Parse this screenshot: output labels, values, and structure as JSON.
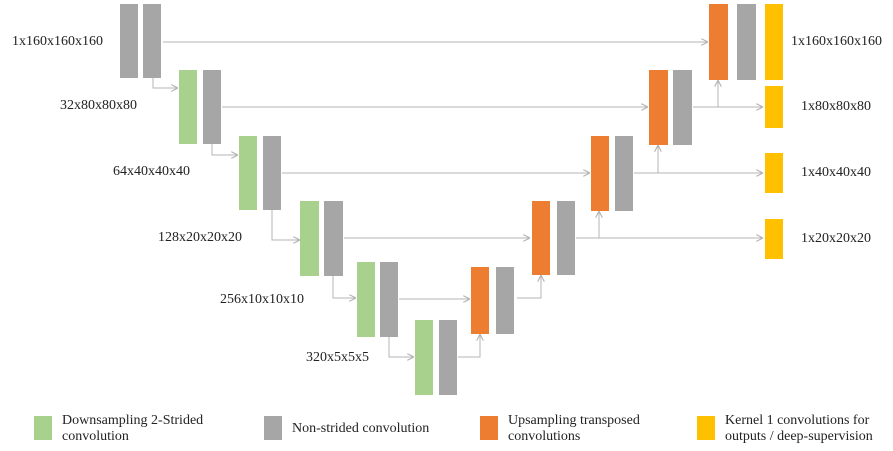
{
  "colors": {
    "downsampling": "#a9d18e",
    "nonstrided": "#a6a6a6",
    "upsampling": "#ed7d31",
    "output": "#ffc000",
    "arrow": "#b4b4b4"
  },
  "encoder_labels": [
    "1x160x160x160",
    "32x80x80x80",
    "64x40x40x40",
    "128x20x20x20",
    "256x10x10x10",
    "320x5x5x5"
  ],
  "output_labels": [
    "1x160x160x160",
    "1x80x80x80",
    "1x40x40x40",
    "1x20x20x20"
  ],
  "legend": [
    {
      "key": "downsampling",
      "text": "Downsampling 2-Strided convolution"
    },
    {
      "key": "nonstrided",
      "text": "Non-strided convolution"
    },
    {
      "key": "upsampling",
      "text": "Upsampling transposed convolutions"
    },
    {
      "key": "output",
      "text": "Kernel 1 convolutions for outputs / deep-supervision"
    }
  ]
}
